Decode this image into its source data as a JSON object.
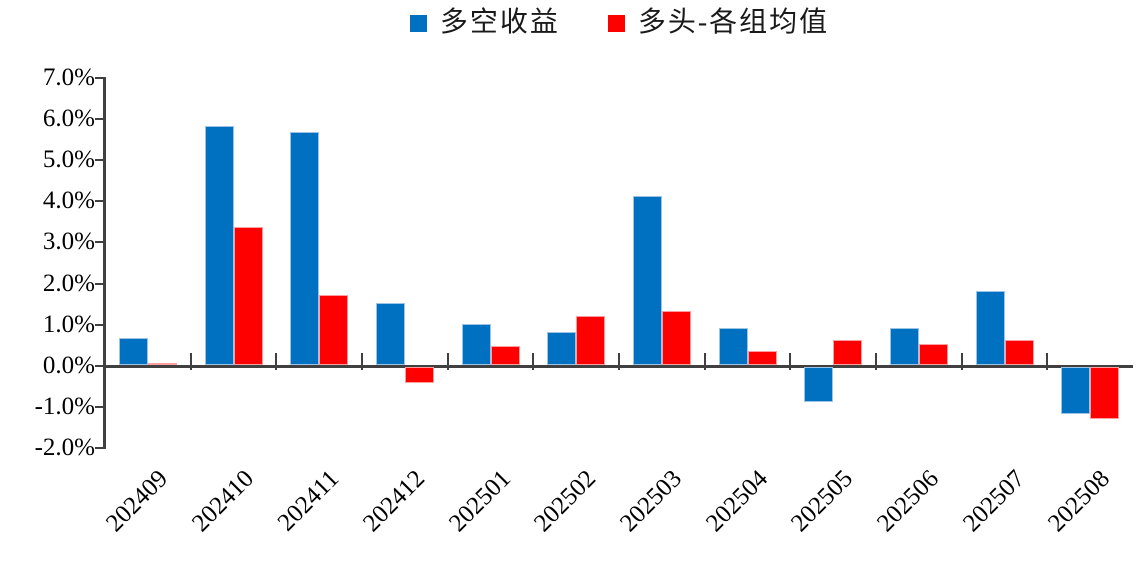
{
  "chart_data": {
    "type": "bar",
    "title": "",
    "categories": [
      "202409",
      "202410",
      "202411",
      "202412",
      "202501",
      "202502",
      "202503",
      "202504",
      "202505",
      "202506",
      "202507",
      "202508"
    ],
    "series": [
      {
        "name": "多空收益",
        "color": "#0070C0",
        "border_color": "#9DC3E6",
        "values": [
          0.65,
          5.8,
          5.65,
          1.5,
          1.0,
          0.8,
          4.1,
          0.9,
          -0.85,
          0.9,
          1.8,
          -1.15
        ]
      },
      {
        "name": "多头-各组均值",
        "color": "#FF0000",
        "border_color": "#FF9E9E",
        "values": [
          0.05,
          3.35,
          1.7,
          -0.4,
          0.45,
          1.2,
          1.3,
          0.35,
          0.6,
          0.5,
          0.6,
          -1.25
        ]
      }
    ],
    "xlabel": "",
    "ylabel": "",
    "ylim": [
      -2.0,
      7.0
    ],
    "ytick_values": [
      7,
      6,
      5,
      4,
      3,
      2,
      1,
      0,
      -1,
      -2
    ],
    "ytick_labels": [
      "7.0%",
      "6.0%",
      "5.0%",
      "4.0%",
      "3.0%",
      "2.0%",
      "1.0%",
      "0.0%",
      "-1.0%",
      "-2.0%"
    ],
    "unit": "percent",
    "grid": "off",
    "legend_position": "top-center",
    "axis_color": "#404040",
    "text_color": "#000000",
    "background_color": "#FFFFFF"
  }
}
